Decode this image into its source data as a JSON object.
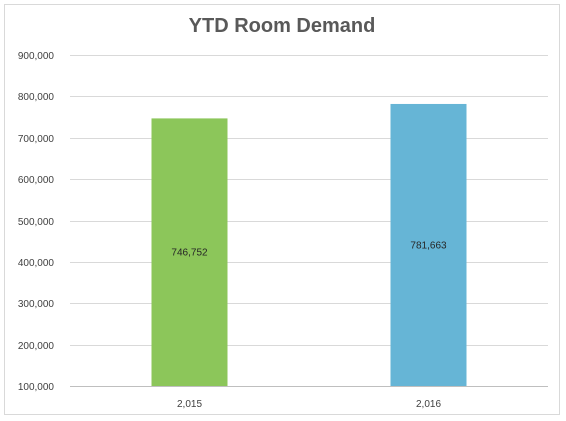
{
  "chart_data": {
    "type": "bar",
    "title": "YTD Room Demand",
    "xlabel": "",
    "ylabel": "",
    "categories": [
      "2,015",
      "2,016"
    ],
    "values": [
      746752,
      781663
    ],
    "data_labels": [
      "746,752",
      "781,663"
    ],
    "bar_colors": [
      "#8cc65a",
      "#66b5d6"
    ],
    "ylim": [
      100000,
      900000
    ],
    "y_ticks": [
      100000,
      200000,
      300000,
      400000,
      500000,
      600000,
      700000,
      800000,
      900000
    ],
    "y_tick_labels": [
      "100,000",
      "200,000",
      "300,000",
      "400,000",
      "500,000",
      "600,000",
      "700,000",
      "800,000",
      "900,000"
    ],
    "grid": true,
    "legend": "none"
  }
}
